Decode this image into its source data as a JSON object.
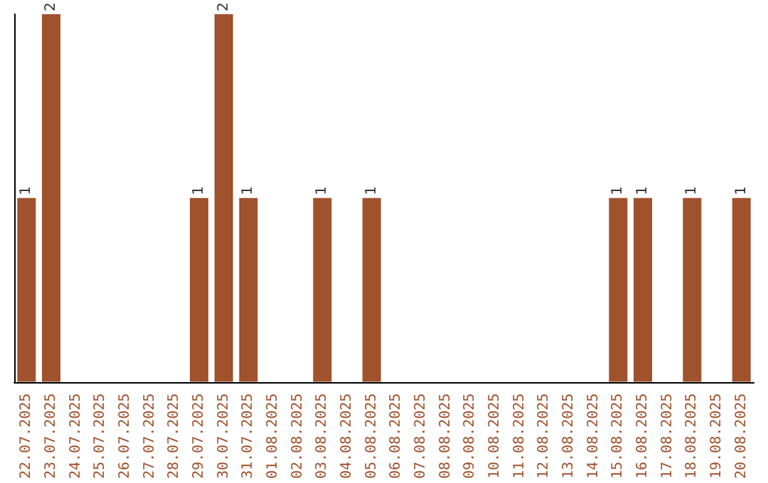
{
  "chart_data": {
    "type": "bar",
    "categories": [
      "22.07.2025",
      "23.07.2025",
      "24.07.2025",
      "25.07.2025",
      "26.07.2025",
      "27.07.2025",
      "28.07.2025",
      "29.07.2025",
      "30.07.2025",
      "31.07.2025",
      "01.08.2025",
      "02.08.2025",
      "03.08.2025",
      "04.08.2025",
      "05.08.2025",
      "06.08.2025",
      "07.08.2025",
      "08.08.2025",
      "09.08.2025",
      "10.08.2025",
      "11.08.2025",
      "12.08.2025",
      "13.08.2025",
      "14.08.2025",
      "15.08.2025",
      "16.08.2025",
      "17.08.2025",
      "18.08.2025",
      "19.08.2025",
      "20.08.2025"
    ],
    "values": [
      1,
      2,
      0,
      0,
      0,
      0,
      0,
      1,
      2,
      1,
      0,
      0,
      1,
      0,
      1,
      0,
      0,
      0,
      0,
      0,
      0,
      0,
      0,
      0,
      1,
      1,
      0,
      1,
      0,
      1
    ],
    "value_labels": [
      "1",
      "2",
      null,
      null,
      null,
      null,
      null,
      "1",
      "2",
      "1",
      null,
      null,
      "1",
      null,
      "1",
      null,
      null,
      null,
      null,
      null,
      null,
      null,
      null,
      null,
      "1",
      "1",
      null,
      "1",
      null,
      "1"
    ],
    "color": "#a0522d",
    "grid": false,
    "tick_labels": "x"
  }
}
